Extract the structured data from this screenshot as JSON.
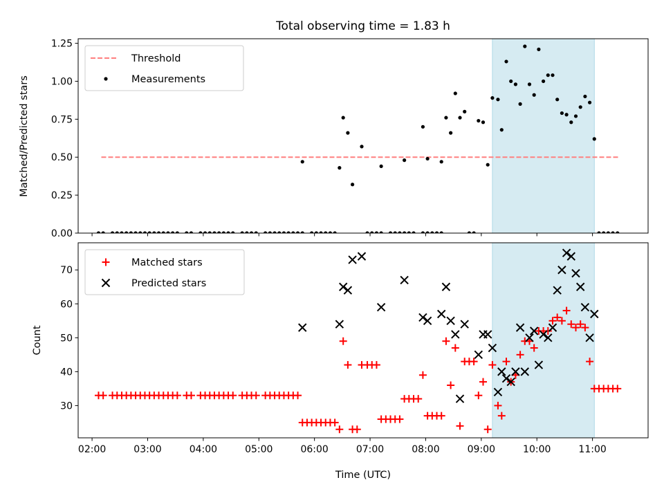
{
  "chart_data": [
    {
      "type": "scatter",
      "title": "Total observing time = 1.83 h",
      "ylabel": "Matched/Predicted stars",
      "xlim": [
        "01:45",
        "12:00"
      ],
      "ylim": [
        0,
        1.28
      ],
      "yticks": [
        "0.00",
        "0.25",
        "0.50",
        "0.75",
        "1.00",
        "1.25"
      ],
      "highlight_span": [
        "09:12",
        "11:02"
      ],
      "legend_location": "upper-left",
      "threshold": {
        "name": "Threshold",
        "value": 0.5,
        "x": [
          "02:10",
          "11:28"
        ],
        "color": "#ff7f7f",
        "style": "dashed"
      },
      "series": [
        {
          "name": "Measurements",
          "color": "#000000",
          "points": [
            [
              "02:07",
              0
            ],
            [
              "02:12",
              0
            ],
            [
              "02:22",
              0
            ],
            [
              "02:27",
              0
            ],
            [
              "02:32",
              0
            ],
            [
              "02:37",
              0
            ],
            [
              "02:42",
              0
            ],
            [
              "02:47",
              0
            ],
            [
              "02:52",
              0
            ],
            [
              "02:57",
              0
            ],
            [
              "03:02",
              0
            ],
            [
              "03:07",
              0
            ],
            [
              "03:12",
              0
            ],
            [
              "03:17",
              0
            ],
            [
              "03:22",
              0
            ],
            [
              "03:27",
              0
            ],
            [
              "03:32",
              0
            ],
            [
              "03:42",
              0
            ],
            [
              "03:47",
              0
            ],
            [
              "03:57",
              0
            ],
            [
              "04:02",
              0
            ],
            [
              "04:07",
              0
            ],
            [
              "04:12",
              0
            ],
            [
              "04:17",
              0
            ],
            [
              "04:22",
              0
            ],
            [
              "04:27",
              0
            ],
            [
              "04:32",
              0
            ],
            [
              "04:42",
              0
            ],
            [
              "04:47",
              0
            ],
            [
              "04:52",
              0
            ],
            [
              "04:57",
              0
            ],
            [
              "05:07",
              0
            ],
            [
              "05:12",
              0
            ],
            [
              "05:17",
              0
            ],
            [
              "05:22",
              0
            ],
            [
              "05:27",
              0
            ],
            [
              "05:32",
              0
            ],
            [
              "05:37",
              0
            ],
            [
              "05:42",
              0
            ],
            [
              "05:47",
              0
            ],
            [
              "05:57",
              0
            ],
            [
              "06:02",
              0
            ],
            [
              "06:07",
              0
            ],
            [
              "06:12",
              0
            ],
            [
              "06:17",
              0
            ],
            [
              "06:22",
              0
            ],
            [
              "06:57",
              0
            ],
            [
              "07:02",
              0
            ],
            [
              "07:07",
              0
            ],
            [
              "07:12",
              0
            ],
            [
              "07:22",
              0
            ],
            [
              "07:27",
              0
            ],
            [
              "07:32",
              0
            ],
            [
              "07:37",
              0
            ],
            [
              "07:42",
              0
            ],
            [
              "07:47",
              0
            ],
            [
              "07:57",
              0
            ],
            [
              "08:02",
              0
            ],
            [
              "08:07",
              0
            ],
            [
              "08:12",
              0
            ],
            [
              "08:17",
              0
            ],
            [
              "08:47",
              0
            ],
            [
              "08:52",
              0
            ],
            [
              "11:07",
              0
            ],
            [
              "11:12",
              0
            ],
            [
              "11:17",
              0
            ],
            [
              "11:22",
              0
            ],
            [
              "11:27",
              0
            ],
            [
              "05:47",
              0.47
            ],
            [
              "06:27",
              0.43
            ],
            [
              "06:31",
              0.76
            ],
            [
              "06:36",
              0.66
            ],
            [
              "06:41",
              0.32
            ],
            [
              "06:51",
              0.57
            ],
            [
              "07:12",
              0.44
            ],
            [
              "07:37",
              0.48
            ],
            [
              "07:57",
              0.7
            ],
            [
              "08:02",
              0.49
            ],
            [
              "08:17",
              0.47
            ],
            [
              "08:22",
              0.76
            ],
            [
              "08:27",
              0.66
            ],
            [
              "08:32",
              0.92
            ],
            [
              "08:37",
              0.76
            ],
            [
              "08:42",
              0.8
            ],
            [
              "08:57",
              0.74
            ],
            [
              "09:02",
              0.73
            ],
            [
              "09:07",
              0.45
            ],
            [
              "09:12",
              0.89
            ],
            [
              "09:18",
              0.88
            ],
            [
              "09:22",
              0.68
            ],
            [
              "09:27",
              1.13
            ],
            [
              "09:32",
              1.0
            ],
            [
              "09:37",
              0.98
            ],
            [
              "09:42",
              0.85
            ],
            [
              "09:47",
              1.23
            ],
            [
              "09:52",
              0.98
            ],
            [
              "09:57",
              0.91
            ],
            [
              "10:02",
              1.21
            ],
            [
              "10:07",
              1.0
            ],
            [
              "10:12",
              1.04
            ],
            [
              "10:17",
              1.04
            ],
            [
              "10:22",
              0.88
            ],
            [
              "10:27",
              0.79
            ],
            [
              "10:32",
              0.78
            ],
            [
              "10:37",
              0.73
            ],
            [
              "10:42",
              0.77
            ],
            [
              "10:47",
              0.83
            ],
            [
              "10:52",
              0.9
            ],
            [
              "10:57",
              0.86
            ],
            [
              "11:02",
              0.62
            ]
          ]
        }
      ]
    },
    {
      "type": "scatter",
      "xlabel": "Time (UTC)",
      "ylabel": "Count",
      "xlim": [
        "01:45",
        "12:00"
      ],
      "ylim": [
        20.5,
        78
      ],
      "xticks": [
        "02:00",
        "03:00",
        "04:00",
        "05:00",
        "06:00",
        "07:00",
        "08:00",
        "09:00",
        "10:00",
        "11:00"
      ],
      "yticks": [
        "30",
        "40",
        "50",
        "60",
        "70"
      ],
      "highlight_span": [
        "09:12",
        "11:02"
      ],
      "legend_location": "upper-left",
      "series": [
        {
          "name": "Matched stars",
          "marker": "plus",
          "color": "#ff0000",
          "points": [
            [
              "02:07",
              33
            ],
            [
              "02:12",
              33
            ],
            [
              "02:22",
              33
            ],
            [
              "02:27",
              33
            ],
            [
              "02:32",
              33
            ],
            [
              "02:37",
              33
            ],
            [
              "02:42",
              33
            ],
            [
              "02:47",
              33
            ],
            [
              "02:52",
              33
            ],
            [
              "02:57",
              33
            ],
            [
              "03:02",
              33
            ],
            [
              "03:07",
              33
            ],
            [
              "03:12",
              33
            ],
            [
              "03:17",
              33
            ],
            [
              "03:22",
              33
            ],
            [
              "03:27",
              33
            ],
            [
              "03:32",
              33
            ],
            [
              "03:42",
              33
            ],
            [
              "03:47",
              33
            ],
            [
              "03:57",
              33
            ],
            [
              "04:02",
              33
            ],
            [
              "04:07",
              33
            ],
            [
              "04:12",
              33
            ],
            [
              "04:17",
              33
            ],
            [
              "04:22",
              33
            ],
            [
              "04:27",
              33
            ],
            [
              "04:32",
              33
            ],
            [
              "04:42",
              33
            ],
            [
              "04:47",
              33
            ],
            [
              "04:52",
              33
            ],
            [
              "04:57",
              33
            ],
            [
              "05:07",
              33
            ],
            [
              "05:12",
              33
            ],
            [
              "05:17",
              33
            ],
            [
              "05:22",
              33
            ],
            [
              "05:27",
              33
            ],
            [
              "05:32",
              33
            ],
            [
              "05:37",
              33
            ],
            [
              "05:42",
              33
            ],
            [
              "05:47",
              25
            ],
            [
              "05:52",
              25
            ],
            [
              "05:57",
              25
            ],
            [
              "06:02",
              25
            ],
            [
              "06:07",
              25
            ],
            [
              "06:12",
              25
            ],
            [
              "06:17",
              25
            ],
            [
              "06:22",
              25
            ],
            [
              "06:27",
              23
            ],
            [
              "06:31",
              49
            ],
            [
              "06:36",
              42
            ],
            [
              "06:41",
              23
            ],
            [
              "06:46",
              23
            ],
            [
              "06:51",
              42
            ],
            [
              "06:57",
              42
            ],
            [
              "07:02",
              42
            ],
            [
              "07:07",
              42
            ],
            [
              "07:12",
              26
            ],
            [
              "07:17",
              26
            ],
            [
              "07:22",
              26
            ],
            [
              "07:27",
              26
            ],
            [
              "07:32",
              26
            ],
            [
              "07:37",
              32
            ],
            [
              "07:42",
              32
            ],
            [
              "07:47",
              32
            ],
            [
              "07:52",
              32
            ],
            [
              "07:57",
              39
            ],
            [
              "08:02",
              27
            ],
            [
              "08:07",
              27
            ],
            [
              "08:12",
              27
            ],
            [
              "08:17",
              27
            ],
            [
              "08:22",
              49
            ],
            [
              "08:27",
              36
            ],
            [
              "08:32",
              47
            ],
            [
              "08:37",
              24
            ],
            [
              "08:42",
              43
            ],
            [
              "08:47",
              43
            ],
            [
              "08:52",
              43
            ],
            [
              "08:57",
              33
            ],
            [
              "09:02",
              37
            ],
            [
              "09:07",
              23
            ],
            [
              "09:12",
              42
            ],
            [
              "09:18",
              30
            ],
            [
              "09:22",
              27
            ],
            [
              "09:27",
              43
            ],
            [
              "09:32",
              37
            ],
            [
              "09:37",
              39
            ],
            [
              "09:42",
              45
            ],
            [
              "09:47",
              49
            ],
            [
              "09:52",
              49
            ],
            [
              "09:57",
              47
            ],
            [
              "10:02",
              52
            ],
            [
              "10:07",
              52
            ],
            [
              "10:12",
              52
            ],
            [
              "10:17",
              55
            ],
            [
              "10:22",
              56
            ],
            [
              "10:27",
              55
            ],
            [
              "10:32",
              58
            ],
            [
              "10:37",
              54
            ],
            [
              "10:42",
              53
            ],
            [
              "10:47",
              54
            ],
            [
              "10:52",
              53
            ],
            [
              "10:57",
              43
            ],
            [
              "11:02",
              35
            ],
            [
              "11:07",
              35
            ],
            [
              "11:12",
              35
            ],
            [
              "11:17",
              35
            ],
            [
              "11:22",
              35
            ],
            [
              "11:27",
              35
            ]
          ]
        },
        {
          "name": "Predicted stars",
          "marker": "x",
          "color": "#000000",
          "points": [
            [
              "05:47",
              53
            ],
            [
              "06:27",
              54
            ],
            [
              "06:31",
              65
            ],
            [
              "06:36",
              64
            ],
            [
              "06:41",
              73
            ],
            [
              "06:51",
              74
            ],
            [
              "07:12",
              59
            ],
            [
              "07:37",
              67
            ],
            [
              "07:57",
              56
            ],
            [
              "08:02",
              55
            ],
            [
              "08:17",
              57
            ],
            [
              "08:22",
              65
            ],
            [
              "08:27",
              55
            ],
            [
              "08:32",
              51
            ],
            [
              "08:37",
              32
            ],
            [
              "08:42",
              54
            ],
            [
              "08:57",
              45
            ],
            [
              "09:02",
              51
            ],
            [
              "09:07",
              51
            ],
            [
              "09:12",
              47
            ],
            [
              "09:18",
              34
            ],
            [
              "09:22",
              40
            ],
            [
              "09:27",
              38
            ],
            [
              "09:32",
              37
            ],
            [
              "09:37",
              40
            ],
            [
              "09:42",
              53
            ],
            [
              "09:47",
              40
            ],
            [
              "09:52",
              50
            ],
            [
              "09:57",
              52
            ],
            [
              "10:02",
              42
            ],
            [
              "10:07",
              51
            ],
            [
              "10:12",
              50
            ],
            [
              "10:17",
              53
            ],
            [
              "10:22",
              64
            ],
            [
              "10:27",
              70
            ],
            [
              "10:32",
              75
            ],
            [
              "10:37",
              74
            ],
            [
              "10:42",
              69
            ],
            [
              "10:47",
              65
            ],
            [
              "10:52",
              59
            ],
            [
              "10:57",
              50
            ],
            [
              "11:02",
              57
            ]
          ]
        }
      ]
    }
  ]
}
